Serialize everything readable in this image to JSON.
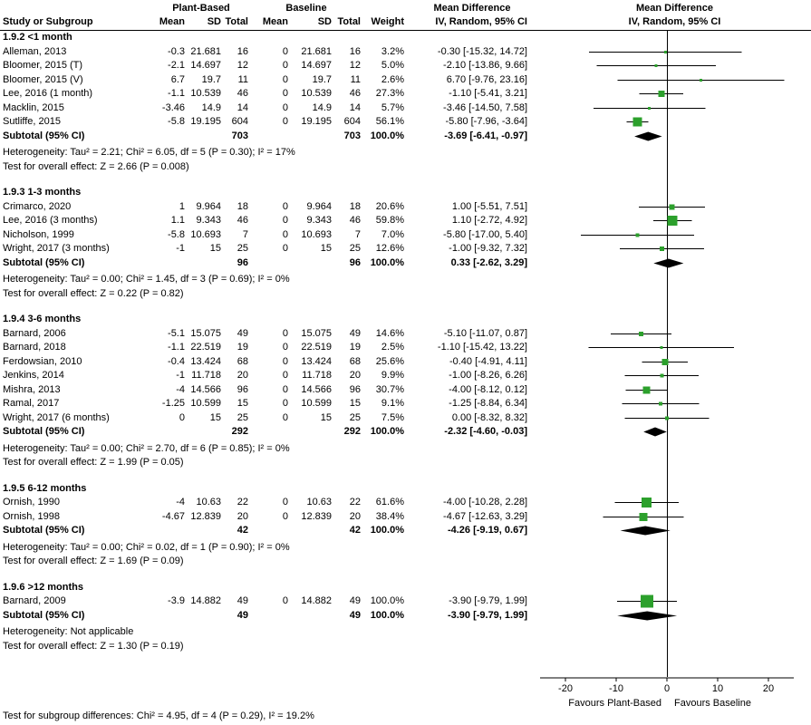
{
  "header": {
    "group_plant": "Plant-Based",
    "group_baseline": "Baseline",
    "mean_difference": "Mean Difference",
    "study": "Study or Subgroup",
    "mean": "Mean",
    "sd": "SD",
    "total": "Total",
    "weight": "Weight",
    "ci_method": "IV, Random, 95% CI"
  },
  "colors": {
    "square": "#2ca02c",
    "diamond": "#000000",
    "line": "#000000"
  },
  "chart_data": {
    "type": "forest",
    "effect_measure": "Mean Difference",
    "method": "IV, Random, 95% CI",
    "axis": {
      "ticks": [
        -20,
        -10,
        0,
        10,
        20
      ],
      "min": -25,
      "max": 25,
      "favours_left": "Favours Plant-Based",
      "favours_right": "Favours Baseline"
    },
    "groups": [
      {
        "title": "1.9.2 <1 month",
        "studies": [
          {
            "label": "Alleman, 2013",
            "pb_mean": "-0.3",
            "pb_sd": "21.681",
            "pb_total": "16",
            "bl_mean": "0",
            "bl_sd": "21.681",
            "bl_total": "16",
            "weight": "3.2%",
            "ci_text": "-0.30 [-15.32, 14.72]",
            "est": -0.3,
            "lo": -15.32,
            "hi": 14.72
          },
          {
            "label": "Bloomer, 2015 (T)",
            "pb_mean": "-2.1",
            "pb_sd": "14.697",
            "pb_total": "12",
            "bl_mean": "0",
            "bl_sd": "14.697",
            "bl_total": "12",
            "weight": "5.0%",
            "ci_text": "-2.10 [-13.86, 9.66]",
            "est": -2.1,
            "lo": -13.86,
            "hi": 9.66
          },
          {
            "label": "Bloomer, 2015 (V)",
            "pb_mean": "6.7",
            "pb_sd": "19.7",
            "pb_total": "11",
            "bl_mean": "0",
            "bl_sd": "19.7",
            "bl_total": "11",
            "weight": "2.6%",
            "ci_text": "6.70 [-9.76, 23.16]",
            "est": 6.7,
            "lo": -9.76,
            "hi": 23.16
          },
          {
            "label": "Lee, 2016 (1 month)",
            "pb_mean": "-1.1",
            "pb_sd": "10.539",
            "pb_total": "46",
            "bl_mean": "0",
            "bl_sd": "10.539",
            "bl_total": "46",
            "weight": "27.3%",
            "ci_text": "-1.10 [-5.41, 3.21]",
            "est": -1.1,
            "lo": -5.41,
            "hi": 3.21
          },
          {
            "label": "Macklin, 2015",
            "pb_mean": "-3.46",
            "pb_sd": "14.9",
            "pb_total": "14",
            "bl_mean": "0",
            "bl_sd": "14.9",
            "bl_total": "14",
            "weight": "5.7%",
            "ci_text": "-3.46 [-14.50, 7.58]",
            "est": -3.46,
            "lo": -14.5,
            "hi": 7.58
          },
          {
            "label": "Sutliffe, 2015",
            "pb_mean": "-5.8",
            "pb_sd": "19.195",
            "pb_total": "604",
            "bl_mean": "0",
            "bl_sd": "19.195",
            "bl_total": "604",
            "weight": "56.1%",
            "ci_text": "-5.80 [-7.96, -3.64]",
            "est": -5.8,
            "lo": -7.96,
            "hi": -3.64
          }
        ],
        "subtotal": {
          "label": "Subtotal (95% CI)",
          "pb_total": "703",
          "bl_total": "703",
          "weight": "100.0%",
          "ci_text": "-3.69 [-6.41, -0.97]",
          "est": -3.69,
          "lo": -6.41,
          "hi": -0.97
        },
        "heterogeneity": "Heterogeneity: Tau² = 2.21; Chi² = 6.05, df = 5 (P = 0.30); I² = 17%",
        "overall_effect": "Test for overall effect: Z = 2.66 (P = 0.008)"
      },
      {
        "title": "1.9.3 1-3 months",
        "studies": [
          {
            "label": "Crimarco, 2020",
            "pb_mean": "1",
            "pb_sd": "9.964",
            "pb_total": "18",
            "bl_mean": "0",
            "bl_sd": "9.964",
            "bl_total": "18",
            "weight": "20.6%",
            "ci_text": "1.00 [-5.51, 7.51]",
            "est": 1.0,
            "lo": -5.51,
            "hi": 7.51
          },
          {
            "label": "Lee, 2016 (3 months)",
            "pb_mean": "1.1",
            "pb_sd": "9.343",
            "pb_total": "46",
            "bl_mean": "0",
            "bl_sd": "9.343",
            "bl_total": "46",
            "weight": "59.8%",
            "ci_text": "1.10 [-2.72, 4.92]",
            "est": 1.1,
            "lo": -2.72,
            "hi": 4.92
          },
          {
            "label": "Nicholson, 1999",
            "pb_mean": "-5.8",
            "pb_sd": "10.693",
            "pb_total": "7",
            "bl_mean": "0",
            "bl_sd": "10.693",
            "bl_total": "7",
            "weight": "7.0%",
            "ci_text": "-5.80 [-17.00, 5.40]",
            "est": -5.8,
            "lo": -17.0,
            "hi": 5.4
          },
          {
            "label": "Wright, 2017 (3 months)",
            "pb_mean": "-1",
            "pb_sd": "15",
            "pb_total": "25",
            "bl_mean": "0",
            "bl_sd": "15",
            "bl_total": "25",
            "weight": "12.6%",
            "ci_text": "-1.00 [-9.32, 7.32]",
            "est": -1.0,
            "lo": -9.32,
            "hi": 7.32
          }
        ],
        "subtotal": {
          "label": "Subtotal (95% CI)",
          "pb_total": "96",
          "bl_total": "96",
          "weight": "100.0%",
          "ci_text": "0.33 [-2.62, 3.29]",
          "est": 0.33,
          "lo": -2.62,
          "hi": 3.29
        },
        "heterogeneity": "Heterogeneity: Tau² = 0.00; Chi² = 1.45, df = 3 (P = 0.69); I² = 0%",
        "overall_effect": "Test for overall effect: Z = 0.22 (P = 0.82)"
      },
      {
        "title": "1.9.4 3-6 months",
        "studies": [
          {
            "label": "Barnard, 2006",
            "pb_mean": "-5.1",
            "pb_sd": "15.075",
            "pb_total": "49",
            "bl_mean": "0",
            "bl_sd": "15.075",
            "bl_total": "49",
            "weight": "14.6%",
            "ci_text": "-5.10 [-11.07, 0.87]",
            "est": -5.1,
            "lo": -11.07,
            "hi": 0.87
          },
          {
            "label": "Barnard, 2018",
            "pb_mean": "-1.1",
            "pb_sd": "22.519",
            "pb_total": "19",
            "bl_mean": "0",
            "bl_sd": "22.519",
            "bl_total": "19",
            "weight": "2.5%",
            "ci_text": "-1.10 [-15.42, 13.22]",
            "est": -1.1,
            "lo": -15.42,
            "hi": 13.22
          },
          {
            "label": "Ferdowsian, 2010",
            "pb_mean": "-0.4",
            "pb_sd": "13.424",
            "pb_total": "68",
            "bl_mean": "0",
            "bl_sd": "13.424",
            "bl_total": "68",
            "weight": "25.6%",
            "ci_text": "-0.40 [-4.91, 4.11]",
            "est": -0.4,
            "lo": -4.91,
            "hi": 4.11
          },
          {
            "label": "Jenkins, 2014",
            "pb_mean": "-1",
            "pb_sd": "11.718",
            "pb_total": "20",
            "bl_mean": "0",
            "bl_sd": "11.718",
            "bl_total": "20",
            "weight": "9.9%",
            "ci_text": "-1.00 [-8.26, 6.26]",
            "est": -1.0,
            "lo": -8.26,
            "hi": 6.26
          },
          {
            "label": "Mishra, 2013",
            "pb_mean": "-4",
            "pb_sd": "14.566",
            "pb_total": "96",
            "bl_mean": "0",
            "bl_sd": "14.566",
            "bl_total": "96",
            "weight": "30.7%",
            "ci_text": "-4.00 [-8.12, 0.12]",
            "est": -4.0,
            "lo": -8.12,
            "hi": 0.12
          },
          {
            "label": "Ramal, 2017",
            "pb_mean": "-1.25",
            "pb_sd": "10.599",
            "pb_total": "15",
            "bl_mean": "0",
            "bl_sd": "10.599",
            "bl_total": "15",
            "weight": "9.1%",
            "ci_text": "-1.25 [-8.84, 6.34]",
            "est": -1.25,
            "lo": -8.84,
            "hi": 6.34
          },
          {
            "label": "Wright, 2017 (6 months)",
            "pb_mean": "0",
            "pb_sd": "15",
            "pb_total": "25",
            "bl_mean": "0",
            "bl_sd": "15",
            "bl_total": "25",
            "weight": "7.5%",
            "ci_text": "0.00 [-8.32, 8.32]",
            "est": 0.0,
            "lo": -8.32,
            "hi": 8.32
          }
        ],
        "subtotal": {
          "label": "Subtotal (95% CI)",
          "pb_total": "292",
          "bl_total": "292",
          "weight": "100.0%",
          "ci_text": "-2.32 [-4.60, -0.03]",
          "est": -2.32,
          "lo": -4.6,
          "hi": -0.03
        },
        "heterogeneity": "Heterogeneity: Tau² = 0.00; Chi² = 2.70, df = 6 (P = 0.85); I² = 0%",
        "overall_effect": "Test for overall effect: Z = 1.99 (P = 0.05)"
      },
      {
        "title": "1.9.5 6-12 months",
        "studies": [
          {
            "label": "Ornish, 1990",
            "pb_mean": "-4",
            "pb_sd": "10.63",
            "pb_total": "22",
            "bl_mean": "0",
            "bl_sd": "10.63",
            "bl_total": "22",
            "weight": "61.6%",
            "ci_text": "-4.00 [-10.28, 2.28]",
            "est": -4.0,
            "lo": -10.28,
            "hi": 2.28
          },
          {
            "label": "Ornish, 1998",
            "pb_mean": "-4.67",
            "pb_sd": "12.839",
            "pb_total": "20",
            "bl_mean": "0",
            "bl_sd": "12.839",
            "bl_total": "20",
            "weight": "38.4%",
            "ci_text": "-4.67 [-12.63, 3.29]",
            "est": -4.67,
            "lo": -12.63,
            "hi": 3.29
          }
        ],
        "subtotal": {
          "label": "Subtotal (95% CI)",
          "pb_total": "42",
          "bl_total": "42",
          "weight": "100.0%",
          "ci_text": "-4.26 [-9.19, 0.67]",
          "est": -4.26,
          "lo": -9.19,
          "hi": 0.67
        },
        "heterogeneity": "Heterogeneity: Tau² = 0.00; Chi² = 0.02, df = 1 (P = 0.90); I² = 0%",
        "overall_effect": "Test for overall effect: Z = 1.69 (P = 0.09)"
      },
      {
        "title": "1.9.6 >12 months",
        "studies": [
          {
            "label": "Barnard, 2009",
            "pb_mean": "-3.9",
            "pb_sd": "14.882",
            "pb_total": "49",
            "bl_mean": "0",
            "bl_sd": "14.882",
            "bl_total": "49",
            "weight": "100.0%",
            "ci_text": "-3.90 [-9.79, 1.99]",
            "est": -3.9,
            "lo": -9.79,
            "hi": 1.99
          }
        ],
        "subtotal": {
          "label": "Subtotal (95% CI)",
          "pb_total": "49",
          "bl_total": "49",
          "weight": "100.0%",
          "ci_text": "-3.90 [-9.79, 1.99]",
          "est": -3.9,
          "lo": -9.79,
          "hi": 1.99
        },
        "heterogeneity": "Heterogeneity: Not applicable",
        "overall_effect": "Test for overall effect: Z = 1.30 (P = 0.19)"
      }
    ],
    "subgroup_test": "Test for subgroup differences: Chi² = 4.95, df = 4 (P = 0.29), I² = 19.2%"
  }
}
